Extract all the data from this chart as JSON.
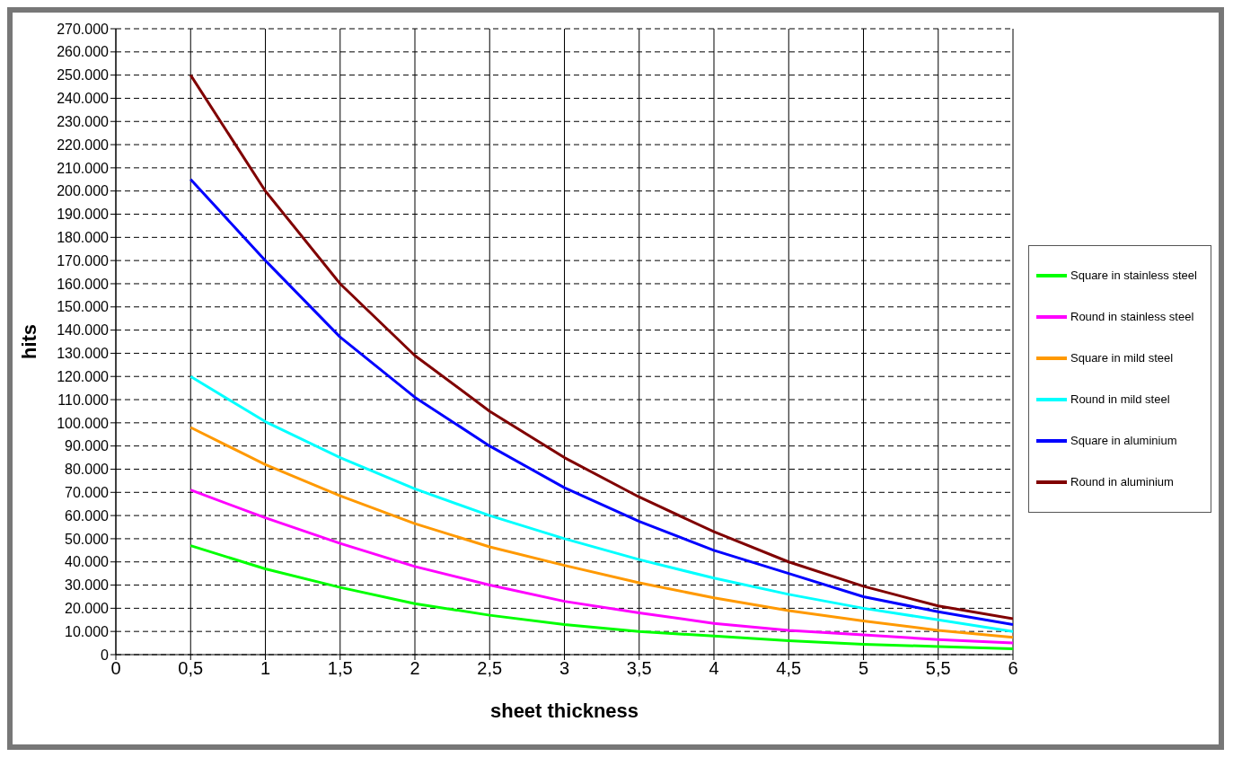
{
  "chart_data": {
    "type": "line",
    "xlabel": "sheet thickness",
    "ylabel": "hits",
    "x": [
      0.5,
      1,
      1.5,
      2,
      2.5,
      3,
      3.5,
      4,
      4.5,
      5,
      5.5,
      6
    ],
    "xlim": [
      0,
      6
    ],
    "xticks": [
      0,
      {
        "value": 0.5,
        "label": "0,5"
      },
      1,
      {
        "value": 1.5,
        "label": "1,5"
      },
      2,
      {
        "value": 2.5,
        "label": "2,5"
      },
      3,
      {
        "value": 3.5,
        "label": "3,5"
      },
      4,
      {
        "value": 4.5,
        "label": "4,5"
      },
      5,
      {
        "value": 5.5,
        "label": "5,5"
      },
      6
    ],
    "ylim": [
      0,
      270000
    ],
    "yticks": [
      0,
      {
        "value": 10000,
        "label": "10.000"
      },
      {
        "value": 20000,
        "label": "20.000"
      },
      {
        "value": 30000,
        "label": "30.000"
      },
      {
        "value": 40000,
        "label": "40.000"
      },
      {
        "value": 50000,
        "label": "50.000"
      },
      {
        "value": 60000,
        "label": "60.000"
      },
      {
        "value": 70000,
        "label": "70.000"
      },
      {
        "value": 80000,
        "label": "80.000"
      },
      {
        "value": 90000,
        "label": "90.000"
      },
      {
        "value": 100000,
        "label": "100.000"
      },
      {
        "value": 110000,
        "label": "110.000"
      },
      {
        "value": 120000,
        "label": "120.000"
      },
      {
        "value": 130000,
        "label": "130.000"
      },
      {
        "value": 140000,
        "label": "140.000"
      },
      {
        "value": 150000,
        "label": "150.000"
      },
      {
        "value": 160000,
        "label": "160.000"
      },
      {
        "value": 170000,
        "label": "170.000"
      },
      {
        "value": 180000,
        "label": "180.000"
      },
      {
        "value": 190000,
        "label": "190.000"
      },
      {
        "value": 200000,
        "label": "200.000"
      },
      {
        "value": 210000,
        "label": "210.000"
      },
      {
        "value": 220000,
        "label": "220.000"
      },
      {
        "value": 230000,
        "label": "230.000"
      },
      {
        "value": 240000,
        "label": "240.000"
      },
      {
        "value": 250000,
        "label": "250.000"
      },
      {
        "value": 260000,
        "label": "260.000"
      },
      {
        "value": 270000,
        "label": "270.000"
      }
    ],
    "grid": true,
    "legend": "right",
    "marker": "none",
    "line_style": "solid",
    "series": [
      {
        "name": "Square in stainless steel",
        "color": "#00ff00",
        "values": [
          47000,
          37000,
          29000,
          22000,
          17000,
          13000,
          10000,
          8000,
          6000,
          4500,
          3500,
          2500
        ]
      },
      {
        "name": "Round in stainless steel",
        "color": "#ff00ff",
        "values": [
          71000,
          59000,
          48000,
          38000,
          30000,
          23000,
          18000,
          13500,
          10500,
          8500,
          6500,
          5000
        ]
      },
      {
        "name": "Square in mild steel",
        "color": "#ff9900",
        "values": [
          98000,
          82000,
          68500,
          56500,
          46500,
          38500,
          31000,
          24500,
          19000,
          14500,
          10500,
          7500
        ]
      },
      {
        "name": "Round in mild steel",
        "color": "#00ffff",
        "values": [
          120000,
          100500,
          85000,
          71500,
          60000,
          50000,
          41000,
          33000,
          26000,
          20000,
          15000,
          10000
        ]
      },
      {
        "name": "Square in aluminium",
        "color": "#0000ff",
        "values": [
          205000,
          170000,
          137000,
          111000,
          90000,
          72000,
          57500,
          45000,
          35000,
          25000,
          18500,
          13000
        ]
      },
      {
        "name": "Round in aluminium",
        "color": "#800000",
        "values": [
          250000,
          200000,
          160000,
          129000,
          105000,
          85000,
          68000,
          53000,
          40000,
          29500,
          21000,
          15500
        ]
      }
    ]
  }
}
